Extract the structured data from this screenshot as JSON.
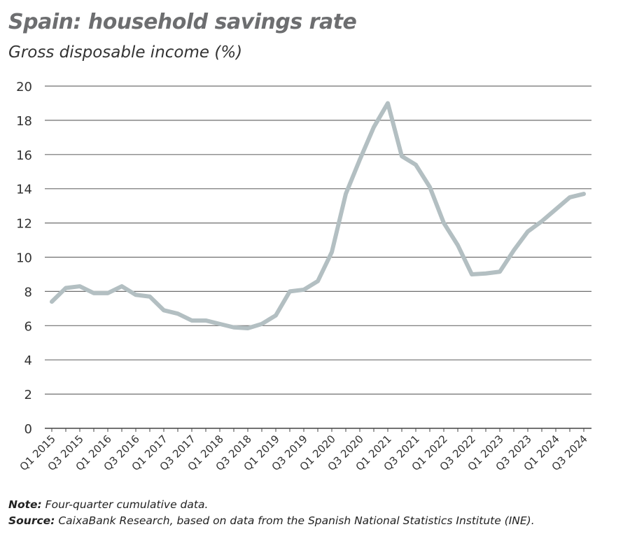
{
  "title": "Spain: household savings rate",
  "subtitle": "Gross disposable income (%)",
  "note_label": "Note:",
  "note_text": " Four-quarter cumulative data.",
  "source_label": "Source:",
  "source_text": " CaixaBank Research, based on data from the Spanish National Statistics Institute (INE).",
  "chart_data": {
    "type": "line",
    "title": "Spain: household savings rate",
    "ylabel": "Gross disposable income (%)",
    "ylim": [
      0,
      20
    ],
    "yticks": [
      0,
      2,
      4,
      6,
      8,
      10,
      12,
      14,
      16,
      18,
      20
    ],
    "grid": true,
    "line_color": "#b3bfc2",
    "x": [
      "Q1 2015",
      "Q2 2015",
      "Q3 2015",
      "Q4 2015",
      "Q1 2016",
      "Q2 2016",
      "Q3 2016",
      "Q4 2016",
      "Q1 2017",
      "Q2 2017",
      "Q3 2017",
      "Q4 2017",
      "Q1 2018",
      "Q2 2018",
      "Q3 2018",
      "Q4 2018",
      "Q1 2019",
      "Q2 2019",
      "Q3 2019",
      "Q4 2019",
      "Q1 2020",
      "Q2 2020",
      "Q3 2020",
      "Q4 2020",
      "Q1 2021",
      "Q2 2021",
      "Q3 2021",
      "Q4 2021",
      "Q1 2022",
      "Q2 2022",
      "Q3 2022",
      "Q4 2022",
      "Q1 2023",
      "Q2 2023",
      "Q3 2023",
      "Q4 2023",
      "Q1 2024",
      "Q2 2024",
      "Q3 2024"
    ],
    "values": [
      7.4,
      8.2,
      8.3,
      7.9,
      7.9,
      8.3,
      7.8,
      7.7,
      6.9,
      6.7,
      6.3,
      6.3,
      6.1,
      5.9,
      5.85,
      6.1,
      6.6,
      8.0,
      8.1,
      8.6,
      10.3,
      13.7,
      15.7,
      17.6,
      19.0,
      15.9,
      15.4,
      14.1,
      12.0,
      10.7,
      9.0,
      9.05,
      9.15,
      10.4,
      11.5,
      12.1,
      12.8,
      13.5,
      13.7
    ],
    "xtick_labels": [
      "Q1 2015",
      "Q3 2015",
      "Q1 2016",
      "Q3 2016",
      "Q1 2017",
      "Q3 2017",
      "Q1 2018",
      "Q3 2018",
      "Q1 2019",
      "Q3 2019",
      "Q1 2020",
      "Q3 2020",
      "Q1 2021",
      "Q3 2021",
      "Q1 2022",
      "Q3 2022",
      "Q1 2023",
      "Q3 2023",
      "Q1 2024",
      "Q3 2024"
    ]
  }
}
